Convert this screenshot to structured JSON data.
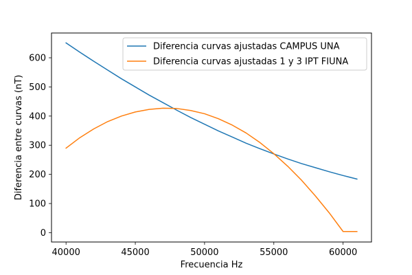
{
  "chart_data": {
    "type": "line",
    "title": "",
    "xlabel": "Frecuencia Hz",
    "ylabel": "Diferencia entre curvas (nT)",
    "xlim": [
      38950,
      62050
    ],
    "ylim": [
      -32,
      685
    ],
    "xticks": [
      40000,
      45000,
      50000,
      55000,
      60000
    ],
    "yticks": [
      0,
      100,
      200,
      300,
      400,
      500,
      600
    ],
    "grid": false,
    "legend_position": "top-right",
    "series": [
      {
        "name": "Diferencia curvas ajustadas CAMPUS UNA",
        "color": "#1f77b4",
        "x": [
          40000,
          41000,
          42000,
          43000,
          44000,
          45000,
          46000,
          47000,
          48000,
          49000,
          50000,
          51000,
          52000,
          53000,
          54000,
          55000,
          56000,
          57000,
          58000,
          59000,
          60000,
          61000
        ],
        "y": [
          651,
          619,
          588,
          558,
          528,
          500,
          472,
          446,
          420,
          395,
          372,
          349,
          328,
          307,
          288,
          270,
          253,
          237,
          223,
          209,
          196,
          184
        ]
      },
      {
        "name": "Diferencia curvas ajustadas 1 y 3 IPT FIUNA",
        "color": "#ff7f0e",
        "x": [
          40000,
          41000,
          42000,
          43000,
          44000,
          45000,
          46000,
          47000,
          48000,
          49000,
          50000,
          51000,
          52000,
          53000,
          54000,
          55000,
          56000,
          57000,
          58000,
          59000,
          60000,
          61000
        ],
        "y": [
          290,
          326,
          356,
          381,
          400,
          414,
          423,
          427,
          426,
          419,
          408,
          391,
          369,
          342,
          309,
          271,
          228,
          180,
          126,
          68,
          4,
          4
        ]
      }
    ]
  }
}
